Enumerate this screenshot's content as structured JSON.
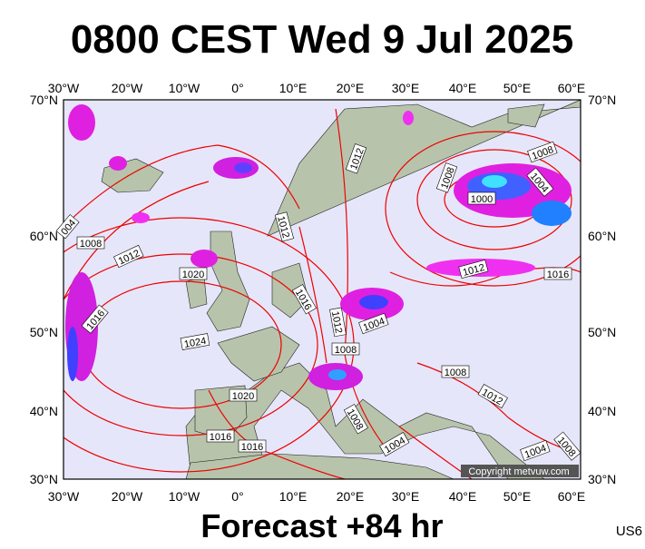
{
  "title": "0800 CEST Wed 9 Jul 2025",
  "footer": "Forecast +84 hr",
  "code": "US6",
  "copyright": "Copyright metvuw.com",
  "map": {
    "lon_labels": [
      "30°W",
      "20°W",
      "10°W",
      "0°",
      "10°E",
      "20°E",
      "30°E",
      "40°E",
      "50°E",
      "60°E"
    ],
    "lat_labels": [
      "70°N",
      "60°N",
      "50°N",
      "40°N",
      "30°N"
    ],
    "isobar_labels": [
      "1012",
      "1008",
      "1012",
      "1020",
      "1016",
      "1024",
      "1016",
      "1012",
      "1012",
      "1004",
      "1008",
      "1020",
      "1016",
      "1016",
      "1008",
      "1004",
      "1008",
      "1012",
      "1012",
      "1016",
      "1008",
      "1000",
      "1008",
      "1004",
      "1004",
      "1008",
      "004"
    ]
  }
}
